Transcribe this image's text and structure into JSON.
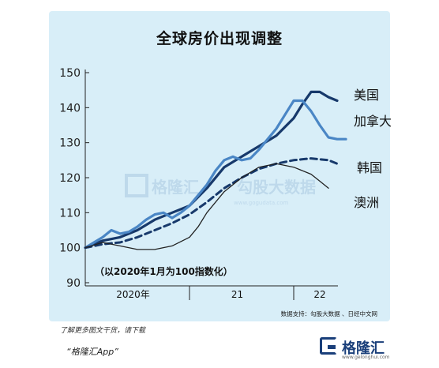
{
  "title": "全球房价出现调整",
  "chart_data": {
    "type": "line",
    "title": "全球房价出现调整",
    "annotation": "（以2020年1月为100指数化）",
    "source": "数据支持：勾股大数据 、日经中文网",
    "ylim": [
      90,
      150
    ],
    "yticks": [
      "90",
      "100",
      "110",
      "120",
      "130",
      "140",
      "150"
    ],
    "xlim": [
      0,
      30
    ],
    "xlabels": [
      {
        "label": "2020年",
        "x": 5.5
      },
      {
        "label": "21",
        "x": 17.5
      },
      {
        "label": "22",
        "x": 27
      }
    ],
    "x_separators": [
      12,
      24
    ],
    "series": [
      {
        "name": "美国",
        "color": "#17396b",
        "style": "solid-thick",
        "x": [
          0,
          2,
          4,
          6,
          8,
          10,
          12,
          14,
          16,
          18,
          20,
          22,
          24,
          25,
          26,
          27,
          28,
          29
        ],
        "values": [
          100,
          102,
          103,
          105,
          108,
          110,
          112,
          117,
          123,
          126,
          129,
          132,
          137,
          141,
          144.5,
          144.5,
          143,
          142
        ]
      },
      {
        "name": "加拿大",
        "color": "#4a86c5",
        "style": "solid-thick",
        "x": [
          0,
          1,
          2,
          3,
          4,
          5,
          6,
          7,
          8,
          9,
          10,
          11,
          12,
          13,
          14,
          15,
          16,
          17,
          18,
          19,
          20,
          21,
          22,
          23,
          24,
          25,
          26,
          27,
          28,
          29,
          30
        ],
        "values": [
          100,
          101.5,
          103,
          105,
          104,
          104.5,
          106,
          108,
          109.5,
          110,
          108.5,
          110,
          112,
          115,
          118,
          122,
          125,
          126,
          125,
          125.5,
          128,
          131,
          134,
          138,
          142,
          142,
          139,
          135,
          131.5,
          131,
          131
        ]
      },
      {
        "name": "韩国",
        "color": "#17396b",
        "style": "dashed",
        "x": [
          0,
          2,
          4,
          6,
          8,
          10,
          12,
          14,
          16,
          18,
          20,
          22,
          24,
          26,
          28,
          29
        ],
        "values": [
          100,
          101,
          101.5,
          103,
          105,
          107,
          109.5,
          113,
          117,
          120,
          122.5,
          124,
          125,
          125.5,
          125,
          124
        ]
      },
      {
        "name": "澳洲",
        "color": "#222222",
        "style": "solid-thin",
        "x": [
          0,
          2,
          4,
          6,
          8,
          10,
          12,
          13,
          14,
          16,
          18,
          20,
          22,
          24,
          26,
          27,
          28
        ],
        "values": [
          100,
          101.5,
          100.5,
          99.5,
          99.5,
          100.5,
          103,
          106,
          110,
          116,
          120,
          123,
          124,
          123,
          121,
          119,
          117
        ]
      }
    ],
    "grid": false,
    "legend": "end-labels"
  },
  "watermark": {
    "text1": "格隆汇",
    "text2": "勾股大数据",
    "url": "www.gogudata.com"
  },
  "footer": {
    "more_text": "了解更多图文干货，请下载",
    "app_text": "“格隆汇App”",
    "brand_name": "格隆汇",
    "brand_url": "www.gelonghui.com"
  }
}
